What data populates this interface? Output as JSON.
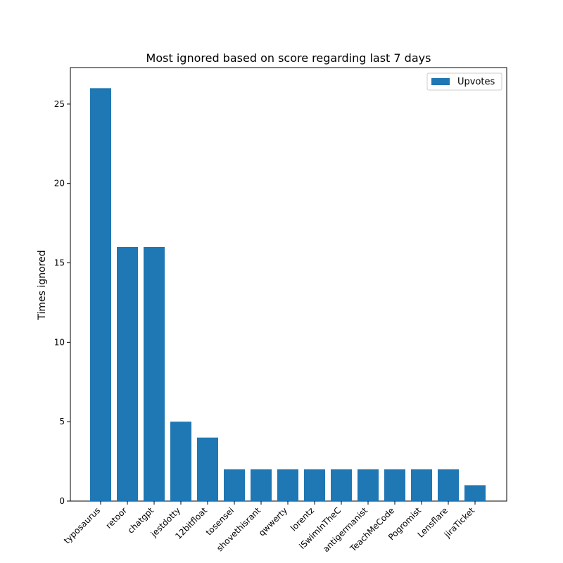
{
  "chart_data": {
    "type": "bar",
    "title": "Most ignored based on score regarding last 7 days",
    "xlabel": "",
    "ylabel": "Times ignored",
    "categories": [
      "typosaurus",
      "retoor",
      "chatgpt",
      "jestdotty",
      "12bitfloat",
      "tosensei",
      "shovethisrant",
      "qwwerty",
      "lorentz",
      "iSwimInTheC",
      "antigermanist",
      "TeachMeCode",
      "Pogromist",
      "Lensflare",
      "jiraTicket"
    ],
    "series": [
      {
        "name": "Upvotes",
        "values": [
          26,
          16,
          16,
          5,
          4,
          2,
          2,
          2,
          2,
          2,
          2,
          2,
          2,
          2,
          1
        ],
        "color": "#1f77b4"
      }
    ],
    "ylim": [
      0,
      27.3
    ],
    "yticks": [
      0,
      5,
      10,
      15,
      20,
      25
    ],
    "grid": false,
    "legend": {
      "placement": "top-right",
      "entries": [
        "Upvotes"
      ]
    }
  }
}
